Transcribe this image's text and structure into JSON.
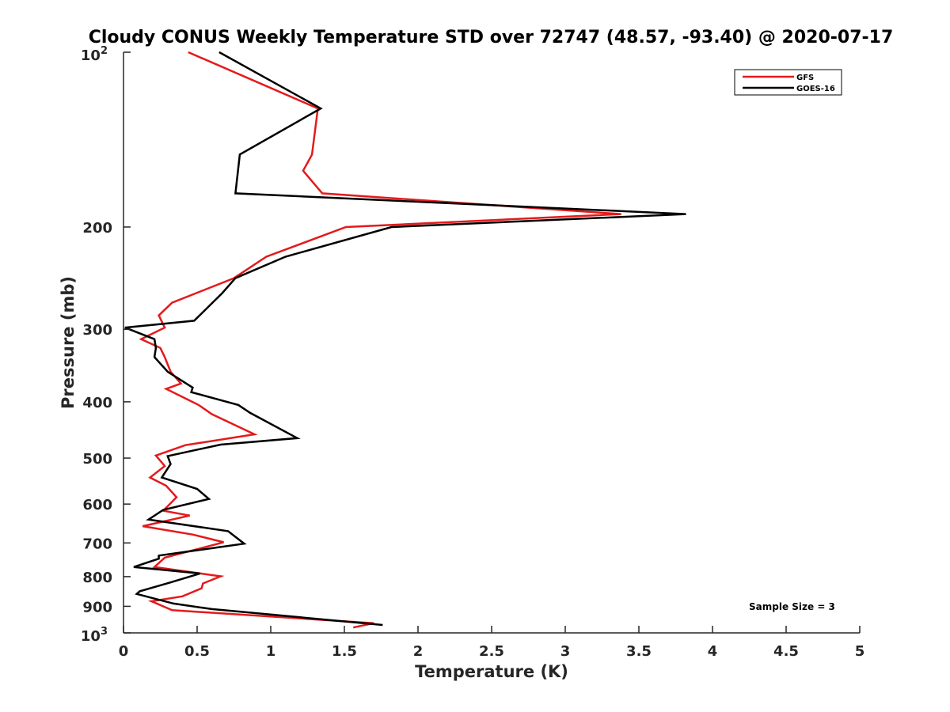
{
  "chart_data": {
    "type": "line",
    "title": "Cloudy CONUS Weekly Temperature STD over 72747 (48.57, -93.40) @ 2020-07-17",
    "xlabel": "Temperature (K)",
    "ylabel": "Pressure (mb)",
    "xlim": [
      0,
      5
    ],
    "ylim": [
      100,
      1000
    ],
    "y_scale": "log",
    "y_reversed": true,
    "grid": false,
    "legend": "top-right",
    "x_ticks": [
      "0",
      "0.5",
      "1",
      "1.5",
      "2",
      "2.5",
      "3",
      "3.5",
      "4",
      "4.5",
      "5"
    ],
    "y_ticks": [
      {
        "value": 100,
        "label": "10",
        "sup": "2"
      },
      {
        "value": 200,
        "label": "200",
        "sup": ""
      },
      {
        "value": 300,
        "label": "300",
        "sup": ""
      },
      {
        "value": 400,
        "label": "400",
        "sup": ""
      },
      {
        "value": 500,
        "label": "500",
        "sup": ""
      },
      {
        "value": 600,
        "label": "600",
        "sup": ""
      },
      {
        "value": 700,
        "label": "700",
        "sup": ""
      },
      {
        "value": 800,
        "label": "800",
        "sup": ""
      },
      {
        "value": 900,
        "label": "900",
        "sup": ""
      },
      {
        "value": 1000,
        "label": "10",
        "sup": "3"
      }
    ],
    "annotation": "Sample Size = 3",
    "series": [
      {
        "name": "GFS",
        "color": "#e41a1c",
        "points": [
          [
            0.44,
            100
          ],
          [
            1.32,
            125
          ],
          [
            1.28,
            150
          ],
          [
            1.22,
            160
          ],
          [
            1.35,
            175
          ],
          [
            3.38,
            190
          ],
          [
            1.51,
            200
          ],
          [
            0.97,
            225
          ],
          [
            0.75,
            245
          ],
          [
            0.33,
            270
          ],
          [
            0.24,
            284
          ],
          [
            0.28,
            298
          ],
          [
            0.12,
            312
          ],
          [
            0.25,
            323
          ],
          [
            0.28,
            335
          ],
          [
            0.32,
            355
          ],
          [
            0.39,
            372
          ],
          [
            0.29,
            380
          ],
          [
            0.51,
            405
          ],
          [
            0.6,
            420
          ],
          [
            0.89,
            455
          ],
          [
            0.42,
            475
          ],
          [
            0.22,
            495
          ],
          [
            0.28,
            516
          ],
          [
            0.18,
            540
          ],
          [
            0.29,
            558
          ],
          [
            0.36,
            584
          ],
          [
            0.27,
            616
          ],
          [
            0.45,
            628
          ],
          [
            0.13,
            655
          ],
          [
            0.47,
            677
          ],
          [
            0.68,
            698
          ],
          [
            0.28,
            742
          ],
          [
            0.21,
            770
          ],
          [
            0.66,
            799
          ],
          [
            0.54,
            822
          ],
          [
            0.53,
            838
          ],
          [
            0.4,
            865
          ],
          [
            0.19,
            882
          ],
          [
            0.33,
            914
          ],
          [
            1.7,
            962
          ],
          [
            1.56,
            979
          ]
        ]
      },
      {
        "name": "GOES-16",
        "color": "#000000",
        "points": [
          [
            0.65,
            100
          ],
          [
            1.34,
            125
          ],
          [
            0.79,
            150
          ],
          [
            0.76,
            175
          ],
          [
            3.82,
            190
          ],
          [
            1.82,
            200
          ],
          [
            1.1,
            225
          ],
          [
            0.76,
            245
          ],
          [
            0.67,
            260
          ],
          [
            0.48,
            290
          ],
          [
            0.01,
            298
          ],
          [
            0.21,
            312
          ],
          [
            0.22,
            323
          ],
          [
            0.21,
            335
          ],
          [
            0.3,
            355
          ],
          [
            0.47,
            378
          ],
          [
            0.46,
            385
          ],
          [
            0.78,
            405
          ],
          [
            0.86,
            418
          ],
          [
            1.18,
            462
          ],
          [
            0.66,
            474
          ],
          [
            0.3,
            496
          ],
          [
            0.32,
            512
          ],
          [
            0.26,
            540
          ],
          [
            0.5,
            565
          ],
          [
            0.58,
            588
          ],
          [
            0.27,
            614
          ],
          [
            0.17,
            638
          ],
          [
            0.71,
            668
          ],
          [
            0.82,
            702
          ],
          [
            0.24,
            736
          ],
          [
            0.24,
            745
          ],
          [
            0.07,
            770
          ],
          [
            0.52,
            790
          ],
          [
            0.31,
            820
          ],
          [
            0.11,
            848
          ],
          [
            0.09,
            857
          ],
          [
            0.34,
            890
          ],
          [
            0.6,
            910
          ],
          [
            1.76,
            969
          ]
        ]
      }
    ]
  }
}
